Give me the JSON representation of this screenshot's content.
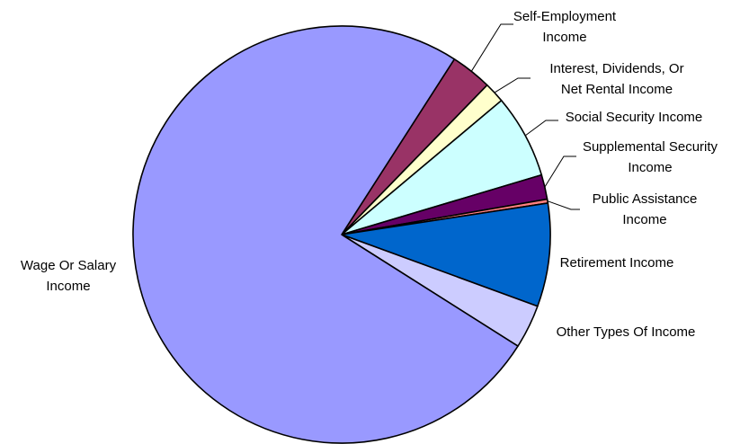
{
  "chart_data": {
    "type": "pie",
    "title": "",
    "start_angle_deg": -57.3,
    "direction": "clockwise",
    "slices": [
      {
        "label": [
          "Self-Employment",
          "Income"
        ],
        "value": 3.2,
        "color": "#993366"
      },
      {
        "label": [
          "Interest, Dividends, Or",
          "Net Rental Income"
        ],
        "value": 1.6,
        "color": "#ffffcc"
      },
      {
        "label": [
          "Social Security Income"
        ],
        "value": 6.5,
        "color": "#ccffff"
      },
      {
        "label": [
          "Supplemental Security",
          "Income"
        ],
        "value": 1.9,
        "color": "#660066"
      },
      {
        "label": [
          "Public Assistance",
          "Income"
        ],
        "value": 0.3,
        "color": "#ff8080"
      },
      {
        "label": [
          "Retirement Income"
        ],
        "value": 8.0,
        "color": "#0066cc"
      },
      {
        "label": [
          "Other Types Of Income"
        ],
        "value": 3.4,
        "color": "#ccccff"
      },
      {
        "label": [
          "Wage Or Salary",
          "Income"
        ],
        "value": 75.1,
        "color": "#9999ff"
      }
    ]
  }
}
